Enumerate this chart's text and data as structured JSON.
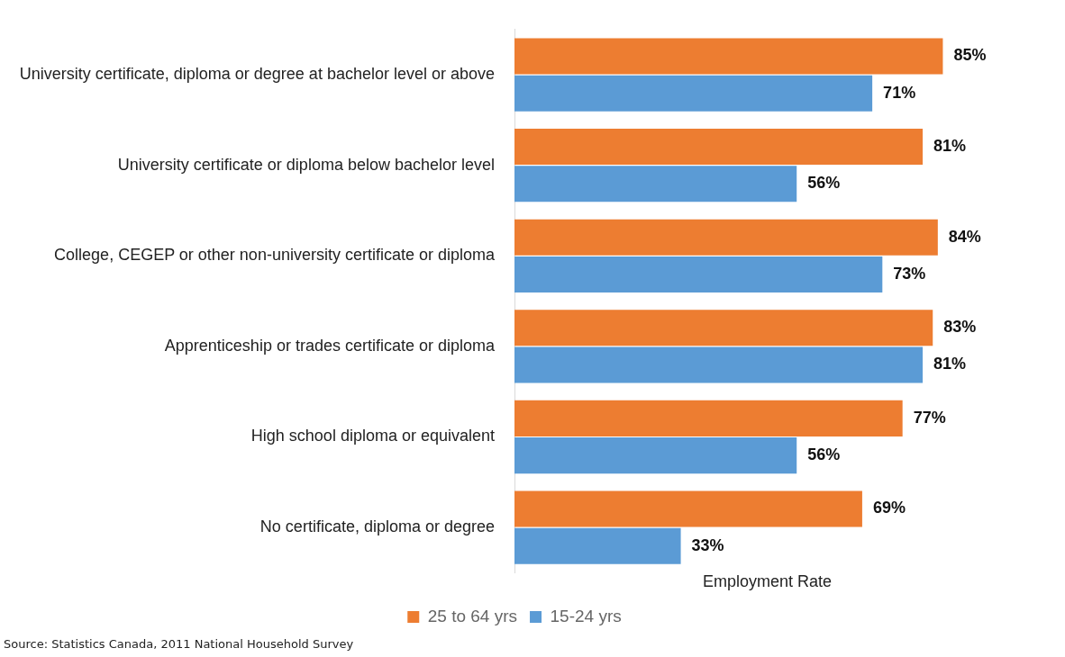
{
  "chart_data": {
    "type": "bar",
    "orientation": "horizontal",
    "xlabel": "Employment Rate",
    "categories": [
      "University certificate, diploma or degree at bachelor level or above",
      "University certificate or diploma below bachelor level",
      "College, CEGEP or other non-university certificate or diploma",
      "Apprenticeship or trades certificate or diploma",
      "High school diploma or equivalent",
      "No certificate, diploma or degree"
    ],
    "series": [
      {
        "name": "25 to 64 yrs",
        "color": "#ed7d31",
        "values": [
          85,
          81,
          84,
          83,
          77,
          69
        ],
        "value_labels": [
          "85%",
          "81%",
          "84%",
          "83%",
          "77%",
          "69%"
        ]
      },
      {
        "name": "15-24 yrs",
        "color": "#5b9bd5",
        "values": [
          71,
          56,
          73,
          81,
          56,
          33
        ],
        "value_labels": [
          "71%",
          "56%",
          "73%",
          "81%",
          "56%",
          "33%"
        ]
      }
    ],
    "legend": "bottom",
    "grid": false,
    "annotations": [
      "Source: Statistics Canada, 2011 National Household Survey"
    ]
  }
}
